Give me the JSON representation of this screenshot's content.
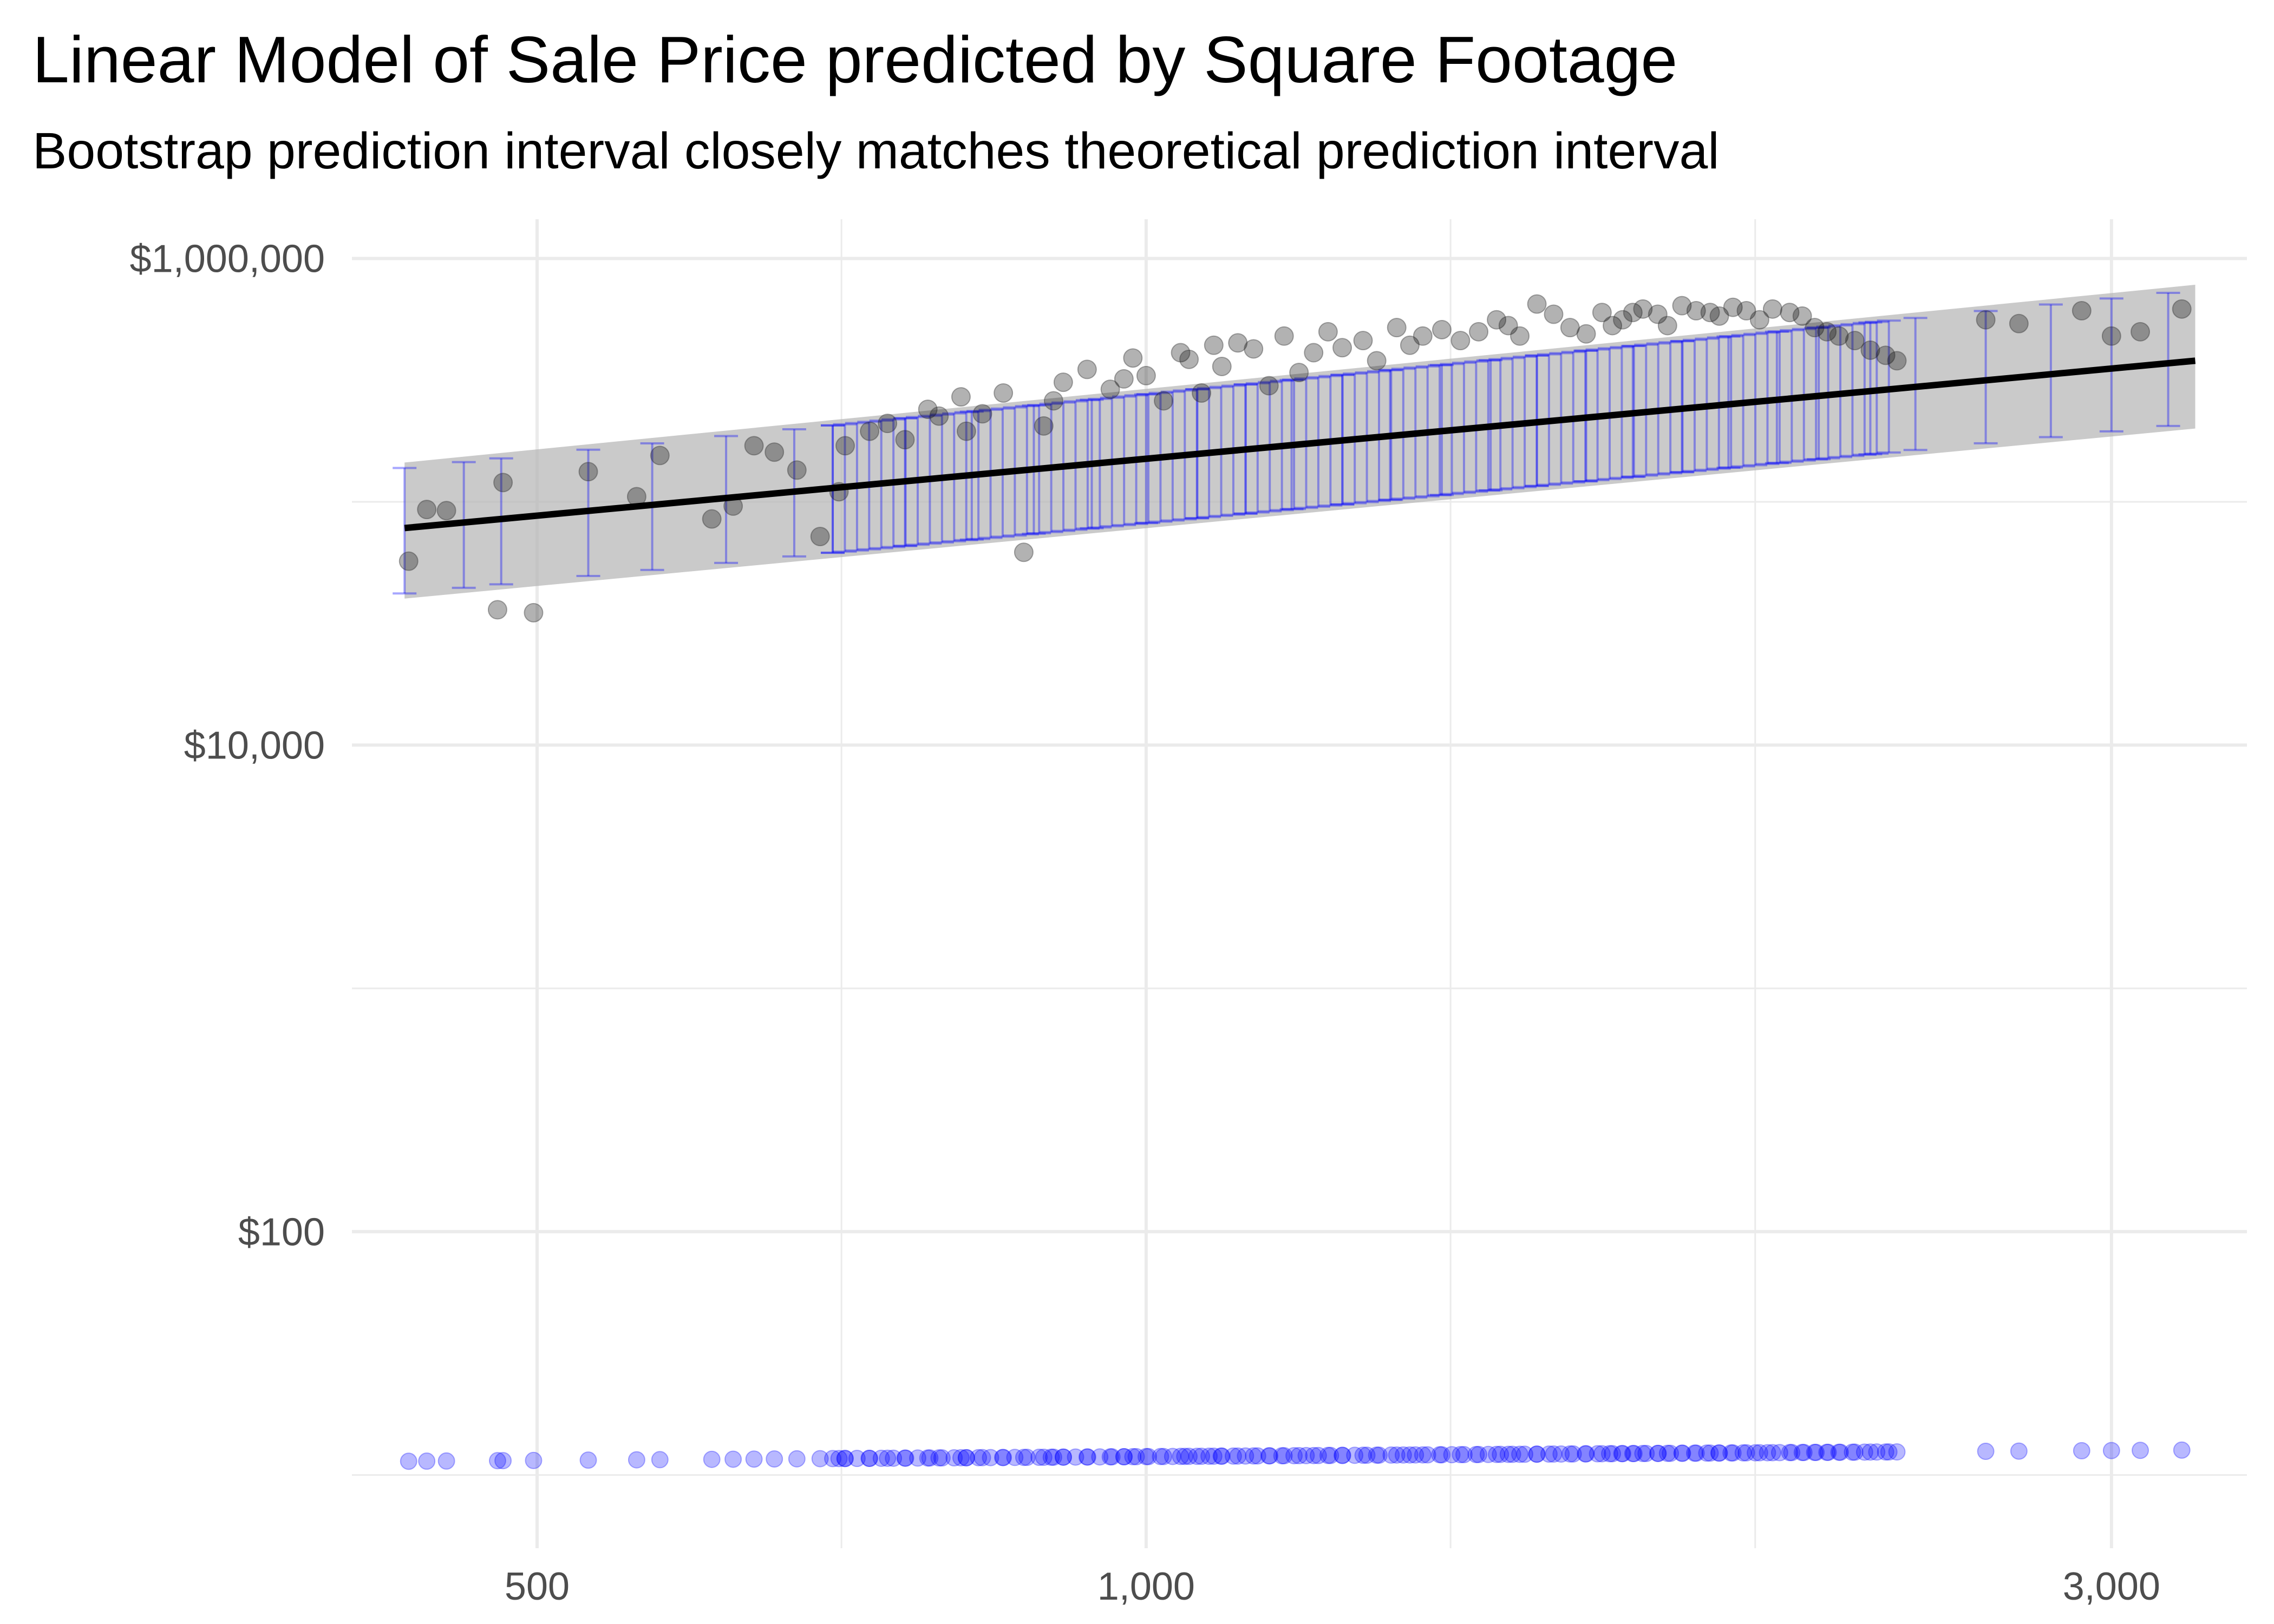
{
  "chart_data": {
    "type": "scatter",
    "title": "Linear Model of Sale Price predicted by Square Footage",
    "subtitle": "Bootstrap prediction interval closely matches theoretical prediction interval",
    "xlabel": "",
    "ylabel": "",
    "x_scale": "log",
    "y_scale": "log",
    "xlim": [
      405,
      3500
    ],
    "ylim": [
      5,
      1450000
    ],
    "x_ticks": [
      500,
      1000,
      3000
    ],
    "x_tick_labels": [
      "500",
      "1,000",
      "3,000"
    ],
    "y_ticks": [
      100,
      10000,
      1000000
    ],
    "y_tick_labels": [
      "$100",
      "$10,000",
      "$1,000,000"
    ],
    "grid": true,
    "legend": "none",
    "fit_line": {
      "x": [
        430,
        3300
      ],
      "y": [
        78000,
        380000
      ]
    },
    "prediction_band": {
      "x": [
        430,
        3300
      ],
      "lower": [
        40000,
        200000
      ],
      "upper": [
        145000,
        780000
      ]
    },
    "bootstrap_errorbars": {
      "x": [
        430,
        460,
        480,
        530,
        570,
        620,
        670,
        700,
        760,
        820,
        880,
        940,
        1000,
        1060,
        1120,
        1180,
        1250,
        1320,
        1400,
        1480,
        1560,
        1650,
        1740,
        1840,
        1940,
        2050,
        2150,
        2280,
        2400,
        2600,
        2800,
        3000,
        3200
      ],
      "count_per_x": 6
    },
    "bootstrap_points_label": "bootstrap predictions plotted near baseline",
    "points": {
      "x": [
        432,
        441,
        451,
        478,
        481,
        498,
        530,
        560,
        575,
        610,
        625,
        640,
        655,
        672,
        690,
        705,
        710,
        730,
        745,
        760,
        780,
        790,
        810,
        815,
        830,
        850,
        870,
        890,
        900,
        910,
        935,
        960,
        975,
        985,
        1000,
        1020,
        1040,
        1050,
        1065,
        1080,
        1090,
        1110,
        1130,
        1150,
        1170,
        1190,
        1210,
        1230,
        1250,
        1280,
        1300,
        1330,
        1350,
        1370,
        1400,
        1430,
        1460,
        1490,
        1510,
        1530,
        1560,
        1590,
        1620,
        1650,
        1680,
        1700,
        1720,
        1740,
        1760,
        1790,
        1810,
        1840,
        1870,
        1900,
        1920,
        1950,
        1980,
        2010,
        2040,
        2080,
        2110,
        2140,
        2170,
        2200,
        2240,
        2280,
        2320,
        2350,
        2600,
        2700,
        2900,
        3000,
        3100,
        3250
      ],
      "y": [
        57000,
        93000,
        92000,
        36000,
        120000,
        35000,
        133000,
        105000,
        155000,
        85000,
        96000,
        170000,
        160000,
        135000,
        72000,
        110000,
        170000,
        195000,
        210000,
        180000,
        240000,
        225000,
        270000,
        195000,
        230000,
        280000,
        62000,
        205000,
        260000,
        310000,
        350000,
        290000,
        320000,
        390000,
        330000,
        260000,
        410000,
        385000,
        280000,
        440000,
        360000,
        450000,
        425000,
        300000,
        480000,
        340000,
        410000,
        500000,
        430000,
        460000,
        380000,
        520000,
        440000,
        480000,
        510000,
        460000,
        500000,
        560000,
        530000,
        480000,
        650000,
        590000,
        520000,
        490000,
        600000,
        530000,
        560000,
        600000,
        620000,
        590000,
        530000,
        640000,
        610000,
        600000,
        580000,
        630000,
        610000,
        560000,
        620000,
        600000,
        580000,
        520000,
        500000,
        480000,
        460000,
        420000,
        400000,
        380000,
        560000,
        540000,
        610000,
        480000,
        500000,
        620000
      ]
    },
    "colors": {
      "points": "#000000",
      "fit_line": "#000000",
      "band": "#b3b3b3",
      "errorbars": "#0000ff",
      "grid": "#ebebeb"
    }
  }
}
